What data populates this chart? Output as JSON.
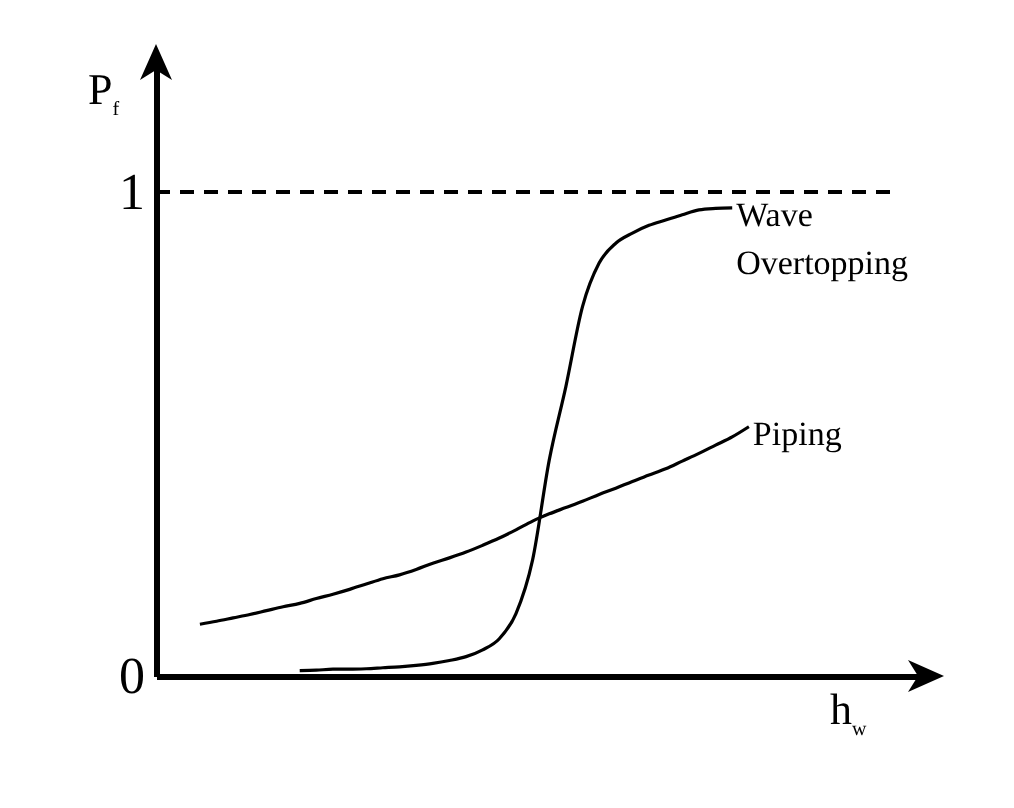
{
  "chart_data": {
    "type": "line",
    "xlabel": "h$_{w}$",
    "ylabel": "P$_{f}$",
    "categories": [
      null,
      null,
      null,
      null,
      null,
      null,
      null,
      null,
      null,
      null,
      null,
      null,
      null,
      null,
      null,
      null,
      null,
      null,
      null,
      null,
      null,
      null,
      null,
      null,
      null,
      null,
      null,
      null,
      null,
      null,
      null,
      null,
      null,
      null,
      null,
      null,
      null,
      null,
      null,
      null,
      null,
      null,
      null,
      null,
      null,
      null
    ],
    "series": [
      {
        "name": "Wave Overtopping",
        "color": "#000000",
        "values": [
          null,
          null,
          null,
          null,
          null,
          null,
          null,
          null,
          0.011,
          0.012,
          0.014,
          0.014,
          0.015,
          0.017,
          0.019,
          0.022,
          0.026,
          0.032,
          0.04,
          0.054,
          0.077,
          0.129,
          0.24,
          0.446,
          0.598,
          0.763,
          0.853,
          0.894,
          0.915,
          0.931,
          0.942,
          0.953,
          0.963,
          0.966,
          0.967,
          null,
          null,
          null,
          null,
          null,
          null,
          null,
          null,
          null,
          null,
          null
        ]
      },
      {
        "name": "Piping",
        "color": "#000000",
        "values": [
          null,
          null,
          0.107,
          0.113,
          0.12,
          0.127,
          0.135,
          0.143,
          0.15,
          0.16,
          0.169,
          0.179,
          0.19,
          0.201,
          0.209,
          0.22,
          0.233,
          0.244,
          0.256,
          0.27,
          0.285,
          0.302,
          0.32,
          0.335,
          0.348,
          0.361,
          0.375,
          0.388,
          0.402,
          0.415,
          0.428,
          0.444,
          0.46,
          0.477,
          0.494,
          0.515,
          null,
          null,
          null,
          null,
          null,
          null,
          null,
          null,
          null,
          null
        ]
      }
    ],
    "ylim": [
      0,
      1.285
    ],
    "yticks": [
      0,
      1
    ],
    "tick_labels": "y",
    "ref_lines": [
      {
        "axis": "y",
        "value": 1,
        "line_style": "dashed",
        "color": "#000000"
      }
    ],
    "grid": false,
    "legend": false,
    "marker": "none",
    "line_style": "solid"
  }
}
